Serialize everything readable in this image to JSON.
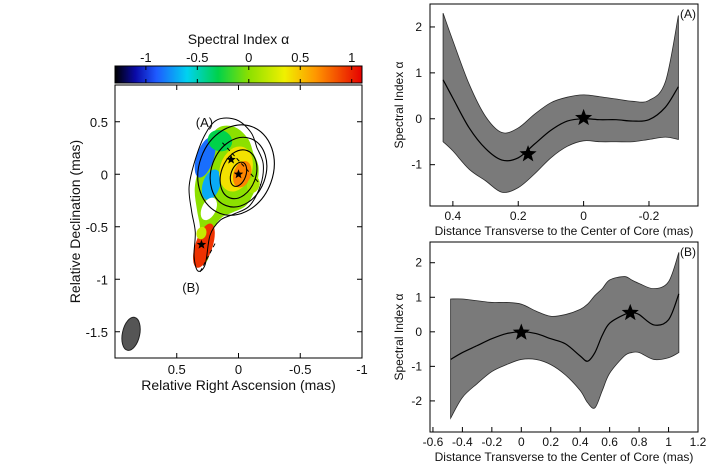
{
  "chart_data": [
    {
      "type": "heatmap",
      "title": "Spectral Index α",
      "colorbar": {
        "tick_labels": [
          "-1",
          "-0.5",
          "0",
          "0.5",
          "1"
        ],
        "range": [
          -1.3,
          1.1
        ],
        "gradient": [
          {
            "value": -1.3,
            "color": "#000000"
          },
          {
            "value": -1.1,
            "color": "#0a0aa8"
          },
          {
            "value": -0.9,
            "color": "#1e5aff"
          },
          {
            "value": -0.6,
            "color": "#00d2f0"
          },
          {
            "value": -0.3,
            "color": "#00d24a"
          },
          {
            "value": 0.0,
            "color": "#8ce000"
          },
          {
            "value": 0.35,
            "color": "#f0f000"
          },
          {
            "value": 0.65,
            "color": "#ff9600"
          },
          {
            "value": 1.1,
            "color": "#e60000"
          }
        ]
      },
      "xlabel": "Relative Right Ascension (mas)",
      "ylabel": "Relative Declination (mas)",
      "xlim": [
        1.0,
        -1.0
      ],
      "ylim": [
        -1.75,
        0.85
      ],
      "xticks": [
        {
          "v": 0.5,
          "label": "0.5"
        },
        {
          "v": 0.0,
          "label": "0"
        },
        {
          "v": -0.5,
          "label": "-0.5"
        },
        {
          "v": -1.0,
          "label": "-1"
        }
      ],
      "yticks": [
        {
          "v": 0.5,
          "label": "0.5"
        },
        {
          "v": 0.0,
          "label": "0"
        },
        {
          "v": -0.5,
          "label": "-0.5"
        },
        {
          "v": -1.0,
          "label": "-1"
        },
        {
          "v": -1.5,
          "label": "-1.5"
        }
      ],
      "slices": [
        {
          "label": "(A)",
          "from": [
            0.13,
            0.3
          ],
          "to": [
            -0.18,
            -0.1
          ]
        },
        {
          "label": "(B)",
          "from": [
            0.19,
            -0.66
          ],
          "to": [
            0.32,
            -0.95
          ]
        }
      ],
      "markers": [
        {
          "x": 0.0,
          "y": 0.0
        },
        {
          "x": 0.06,
          "y": 0.14
        },
        {
          "x": 0.3,
          "y": -0.67
        }
      ],
      "contours": [
        {
          "cx": 0.0,
          "cy": 0.0,
          "rx": 0.06,
          "ry": 0.12,
          "angle_deg": 20
        },
        {
          "cx": 0.0,
          "cy": 0.0,
          "rx": 0.14,
          "ry": 0.24,
          "angle_deg": 20
        },
        {
          "cx": 0.0,
          "cy": 0.02,
          "rx": 0.22,
          "ry": 0.34,
          "angle_deg": 20
        },
        {
          "cx": 0.02,
          "cy": 0.04,
          "rx": 0.3,
          "ry": 0.44,
          "angle_deg": 20
        }
      ],
      "beam": {
        "x": 0.87,
        "y": -1.52,
        "rx": 0.07,
        "ry": 0.16,
        "angle_deg": 12
      }
    },
    {
      "type": "line",
      "panel_label": "(A)",
      "xlabel": "Distance Transverse to the Center of Core (mas)",
      "ylabel": "Spectral Index α",
      "xlim": [
        0.47,
        -0.35
      ],
      "ylim": [
        -1.9,
        2.5
      ],
      "xticks": [
        {
          "v": 0.4,
          "label": "0.4"
        },
        {
          "v": 0.2,
          "label": "0.2"
        },
        {
          "v": 0.0,
          "label": "0"
        },
        {
          "v": -0.2,
          "label": "-0.2"
        }
      ],
      "yticks": [
        {
          "v": 2,
          "label": "2"
        },
        {
          "v": 1,
          "label": "1"
        },
        {
          "v": 0,
          "label": "0"
        },
        {
          "v": -1,
          "label": "-1"
        }
      ],
      "x": [
        0.43,
        0.4,
        0.35,
        0.3,
        0.25,
        0.2,
        0.15,
        0.1,
        0.05,
        0.0,
        -0.05,
        -0.1,
        -0.15,
        -0.2,
        -0.25,
        -0.29
      ],
      "y": [
        0.85,
        0.45,
        -0.2,
        -0.65,
        -0.9,
        -0.85,
        -0.55,
        -0.25,
        -0.05,
        0.0,
        -0.02,
        -0.02,
        -0.05,
        -0.02,
        0.25,
        0.7
      ],
      "upper": [
        2.3,
        1.7,
        0.75,
        0.05,
        -0.3,
        -0.2,
        0.1,
        0.35,
        0.47,
        0.52,
        0.48,
        0.43,
        0.38,
        0.4,
        0.8,
        2.25
      ],
      "lower": [
        -0.5,
        -0.7,
        -1.1,
        -1.35,
        -1.6,
        -1.5,
        -1.2,
        -0.85,
        -0.6,
        -0.48,
        -0.5,
        -0.5,
        -0.5,
        -0.45,
        -0.4,
        -0.45
      ],
      "stars": [
        {
          "x": 0.17,
          "y": -0.77
        },
        {
          "x": 0.0,
          "y": 0.02
        }
      ]
    },
    {
      "type": "line",
      "panel_label": "(B)",
      "xlabel": "Distance Transverse to the Center of Core (mas)",
      "ylabel": "Spectral Index α",
      "xlim": [
        -0.62,
        1.2
      ],
      "ylim": [
        -2.9,
        2.6
      ],
      "xticks": [
        {
          "v": -0.6,
          "label": "-0.6"
        },
        {
          "v": -0.4,
          "label": "-0.4"
        },
        {
          "v": -0.2,
          "label": "-0.2"
        },
        {
          "v": 0.0,
          "label": "0"
        },
        {
          "v": 0.2,
          "label": "0.2"
        },
        {
          "v": 0.4,
          "label": "0.4"
        },
        {
          "v": 0.6,
          "label": "0.6"
        },
        {
          "v": 0.8,
          "label": "0.8"
        },
        {
          "v": 1.0,
          "label": "1"
        },
        {
          "v": 1.2,
          "label": "1.2"
        }
      ],
      "yticks": [
        {
          "v": 2,
          "label": "2"
        },
        {
          "v": 1,
          "label": "1"
        },
        {
          "v": 0,
          "label": "0"
        },
        {
          "v": -1,
          "label": "-1"
        },
        {
          "v": -2,
          "label": "-2"
        }
      ],
      "x": [
        -0.48,
        -0.4,
        -0.3,
        -0.2,
        -0.1,
        0.0,
        0.1,
        0.2,
        0.3,
        0.4,
        0.45,
        0.5,
        0.55,
        0.6,
        0.7,
        0.75,
        0.8,
        0.9,
        1.0,
        1.07
      ],
      "y": [
        -0.8,
        -0.6,
        -0.4,
        -0.2,
        -0.05,
        0.0,
        -0.05,
        -0.2,
        -0.35,
        -0.7,
        -0.85,
        -0.6,
        -0.1,
        0.25,
        0.5,
        0.55,
        0.5,
        0.2,
        0.35,
        1.1
      ],
      "upper": [
        0.95,
        0.95,
        0.9,
        0.85,
        0.85,
        0.8,
        0.6,
        0.45,
        0.5,
        0.65,
        0.8,
        1.05,
        1.25,
        1.5,
        1.6,
        1.5,
        1.4,
        1.25,
        1.45,
        2.3
      ],
      "lower": [
        -2.5,
        -1.9,
        -1.5,
        -1.15,
        -0.95,
        -0.8,
        -0.8,
        -0.95,
        -1.25,
        -1.7,
        -2.05,
        -2.2,
        -1.7,
        -1.2,
        -0.7,
        -0.6,
        -0.6,
        -0.8,
        -0.75,
        -0.6
      ],
      "stars": [
        {
          "x": 0.0,
          "y": -0.02
        },
        {
          "x": 0.74,
          "y": 0.55
        }
      ]
    }
  ]
}
